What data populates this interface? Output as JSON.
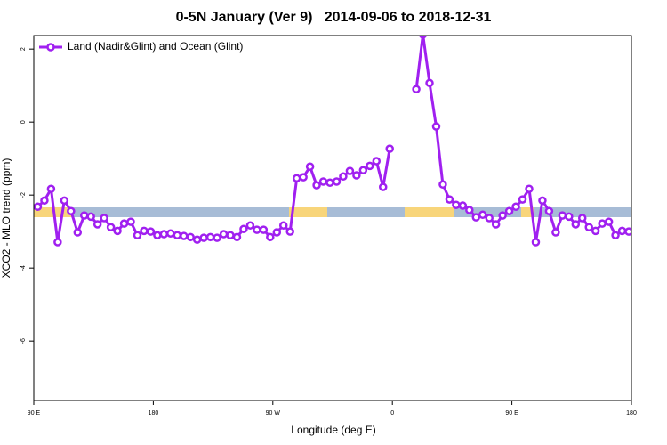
{
  "chart_data": {
    "type": "line",
    "title": "0-5N January (Ver 9)   2014-09-06 to 2018-12-31",
    "xlabel": "Longitude (deg E)",
    "ylabel": "XCO2 - MLO trend (ppm)",
    "xlim": [
      90,
      540
    ],
    "xticks": [
      {
        "value": 90,
        "label": "90 E"
      },
      180,
      {
        "value": 270,
        "label": "90 W"
      },
      {
        "value": 360,
        "label": "0"
      },
      {
        "value": 450,
        "label": "90 E"
      },
      {
        "value": 540,
        "label": "180"
      }
    ],
    "ylim": [
      -7.63,
      2.37
    ],
    "yticks": [
      2,
      0,
      -2,
      -4,
      -6
    ],
    "legend": "top-left",
    "x": [
      93,
      98,
      103,
      108,
      113,
      118,
      123,
      128,
      133,
      138,
      143,
      148,
      153,
      158,
      163,
      168,
      173,
      178,
      183,
      188,
      193,
      198,
      203,
      208,
      213,
      218,
      223,
      228,
      233,
      238,
      243,
      248,
      253,
      258,
      263,
      268,
      273,
      278,
      283,
      288,
      293,
      298,
      303,
      308,
      313,
      318,
      323,
      328,
      333,
      338,
      343,
      348,
      353,
      358,
      363,
      368,
      373,
      378,
      383,
      388,
      393,
      398,
      403,
      408,
      413,
      418,
      423,
      428,
      433,
      438,
      443,
      448,
      453,
      458,
      463,
      468,
      473,
      478,
      483,
      488,
      493,
      498,
      503,
      508,
      513,
      518,
      523,
      528,
      533,
      538
    ],
    "series": [
      {
        "name": "Land (Nadir&Glint) and Ocean (Glint)",
        "color": "#a020f0",
        "values": [
          -2.32,
          -2.15,
          -1.83,
          -3.29,
          -2.15,
          -2.44,
          -3.02,
          -2.56,
          -2.59,
          -2.8,
          -2.63,
          -2.88,
          -2.98,
          -2.78,
          -2.73,
          -3.1,
          -2.98,
          -3.0,
          -3.1,
          -3.07,
          -3.05,
          -3.1,
          -3.12,
          -3.15,
          -3.22,
          -3.17,
          -3.15,
          -3.17,
          -3.07,
          -3.1,
          -3.15,
          -2.93,
          -2.83,
          -2.95,
          -2.95,
          -3.15,
          -3.02,
          -2.83,
          -3.0,
          -1.54,
          -1.51,
          -1.22,
          -1.73,
          -1.63,
          -1.66,
          -1.63,
          -1.49,
          -1.34,
          -1.46,
          -1.32,
          -1.2,
          -1.07,
          -1.78,
          -0.73,
          null,
          null,
          null,
          0.9,
          2.4,
          1.07,
          -0.12,
          -1.71,
          -2.12,
          -2.27,
          -2.29,
          -2.41,
          -2.61,
          -2.54,
          -2.63,
          -2.8,
          -2.56,
          -2.44,
          -2.32,
          -2.12,
          -1.83,
          -3.29,
          -2.15,
          -2.44,
          -3.02,
          -2.56,
          -2.59,
          -2.8,
          -2.63,
          -2.88,
          -2.98,
          -2.78,
          -2.73,
          -3.1,
          -2.98,
          -3.0
        ]
      }
    ]
  }
}
